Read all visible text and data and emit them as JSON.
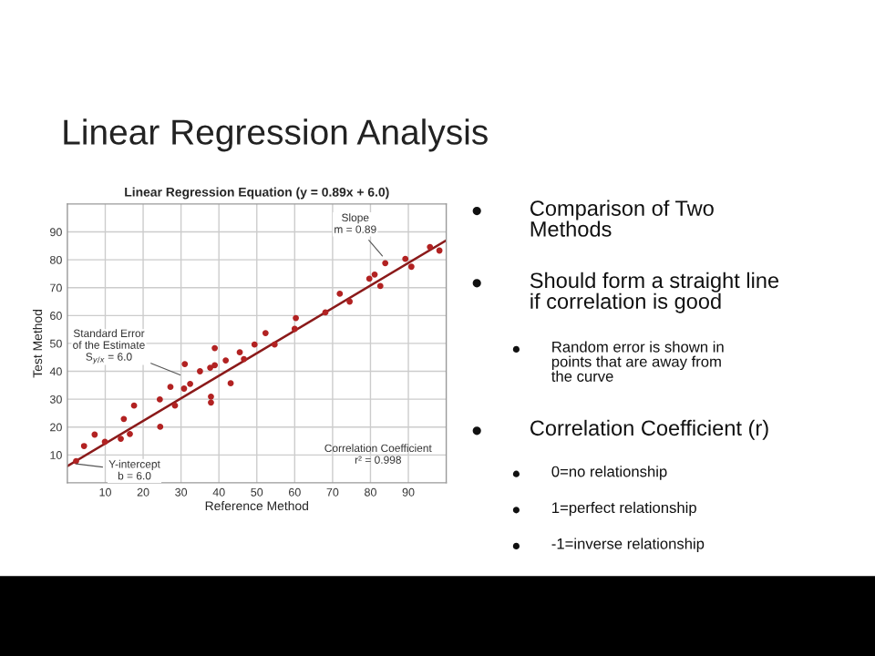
{
  "chart_data": {
    "type": "scatter",
    "title": "Linear Regression Analysis",
    "subtitle": "Linear Regression Equation (y = 0.89x + 6.0)",
    "xlabel": "Reference Method",
    "ylabel": "Test Method",
    "series": [
      {
        "color": "#b22222",
        "x": [
          2.3,
          4.4,
          7.2,
          9.9,
          14.1,
          14.9,
          16.5,
          17.6,
          24.5,
          24.4,
          27.2,
          28.4,
          30.8,
          31,
          32.4,
          35,
          37.7,
          37.9,
          37.9,
          38.9,
          38.9,
          41.8,
          43.1,
          45.5,
          46.6,
          49.4,
          52.3,
          54.7,
          60,
          60.3,
          68.1,
          71.9,
          74.5,
          79.7,
          81.1,
          82.6,
          83.9,
          89.2,
          90.8,
          95.7,
          98.2
        ],
        "values": [
          7.8,
          13.2,
          17.3,
          14.7,
          15.8,
          22.9,
          17.5,
          27.7,
          20.1,
          29.9,
          34.4,
          27.7,
          33.8,
          42.6,
          35.5,
          40,
          41.3,
          28.8,
          30.9,
          48.3,
          42.2,
          43.9,
          35.7,
          46.8,
          44.4,
          49.6,
          53.7,
          49.6,
          55.2,
          59.1,
          61.1,
          67.8,
          65,
          73.2,
          74.7,
          70.6,
          78.8,
          80.3,
          77.5,
          84.6,
          83.3
        ]
      },
      {
        "type": "line",
        "marker": "none",
        "color": "#8b1a1a",
        "x": [
          0,
          100
        ],
        "values": [
          6,
          87
        ]
      }
    ],
    "xlim": [
      0,
      100
    ],
    "ylim": [
      0,
      100
    ],
    "xticks": [
      10,
      20,
      30,
      40,
      50,
      60,
      70,
      80,
      90
    ],
    "yticks": [
      10,
      20,
      30,
      40,
      50,
      60,
      70,
      80,
      90
    ],
    "grid": true,
    "marker": "circle",
    "annotations": [
      {
        "text": "Slope\nm = 0.89",
        "x": 84,
        "y": 80
      },
      {
        "text": "Standard Error\nof the Estimate\nS$_{y/x}$ = 6.0",
        "x": 31,
        "y": 38
      },
      {
        "text": "Y-intercept\nb = 6.0",
        "x": 1,
        "y": 7
      },
      "Correlation Coefficient\nr² = 0.998",
      "Comparison of Two\nMethods",
      "Should form a straight line\nif correlation is good",
      "Random error is shown in\npoints that are away from\nthe curve",
      "Correlation Coefficient (r)",
      "0=no relationship",
      "1=perfect relationship",
      "-1=inverse relationship"
    ]
  }
}
